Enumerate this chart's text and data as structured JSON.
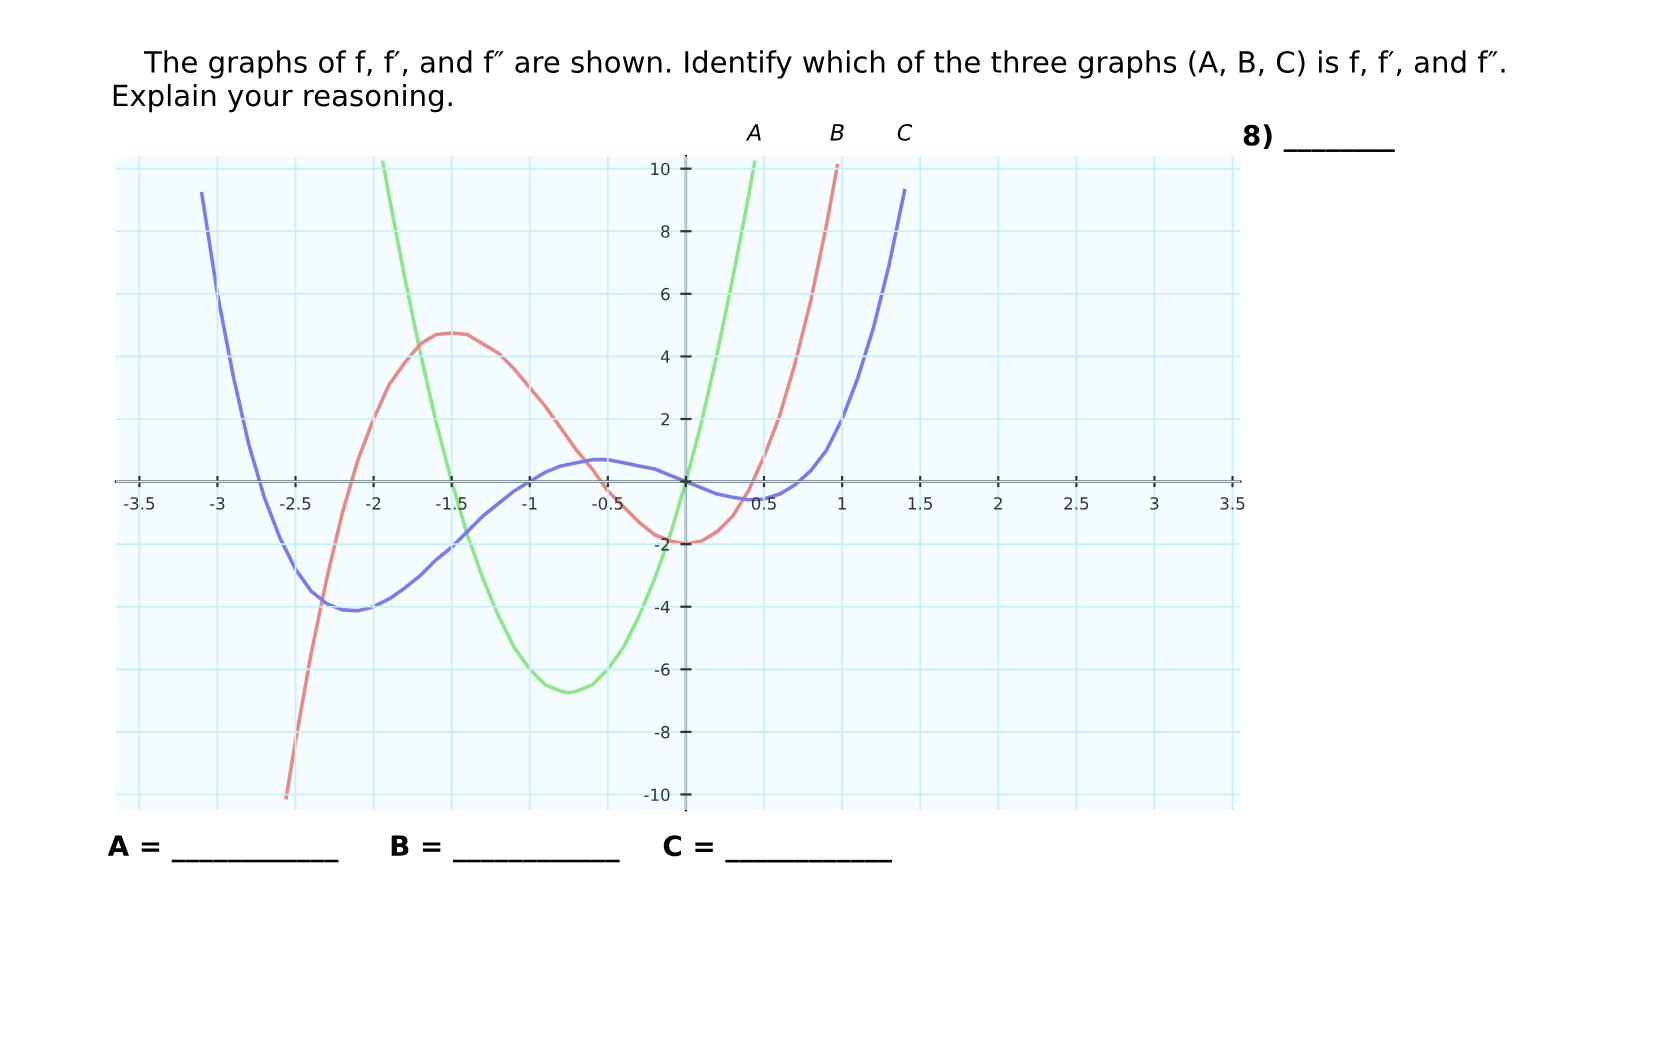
{
  "chart_data": {
    "type": "line",
    "title": "The graphs of f, f′, and f″ are shown. Identify which of the three graphs (A, B, C) is f, f′, and f″.",
    "subtitle": "Explain your reasoning.",
    "annotations": [
      "8) ________",
      "A = ____________",
      "B = ____________",
      "C = ____________"
    ],
    "xlim": [
      -3.65,
      3.55
    ],
    "ylim": [
      -10.5,
      10.4
    ],
    "xticks": [
      -3.5,
      -3,
      -2.5,
      -2,
      -1.5,
      -1,
      -0.5,
      {
        "value": 0,
        "label": null
      },
      0.5,
      1,
      1.5,
      2,
      2.5,
      3,
      3.5
    ],
    "yticks": [
      -10,
      -8,
      -6,
      -4,
      -2,
      {
        "value": 0,
        "label": null
      },
      2,
      4,
      6,
      8,
      10
    ],
    "grid": true,
    "legend": false,
    "marker": "none",
    "line_style": "solid",
    "series": [
      {
        "name": "A",
        "color": "#8ee68a",
        "x": [
          -1.94,
          -1.9,
          -1.8,
          -1.7,
          -1.6,
          -1.5,
          -1.4,
          -1.3,
          -1.2,
          -1.1,
          -1.0,
          -0.9,
          -0.8,
          -0.75,
          -0.7,
          -0.6,
          -0.5,
          -0.4,
          -0.3,
          -0.2,
          -0.1,
          0,
          0.1,
          0.2,
          0.3,
          0.4,
          0.44
        ],
        "values": [
          10.2,
          9.1,
          6.5,
          4.1,
          1.9,
          0,
          -1.7,
          -3.1,
          -4.3,
          -5.3,
          -6.0,
          -6.5,
          -6.7,
          -6.75,
          -6.7,
          -6.5,
          -6.0,
          -5.3,
          -4.3,
          -3.1,
          -1.7,
          0,
          1.9,
          4.1,
          6.5,
          9.1,
          10.2
        ]
      },
      {
        "name": "B",
        "color": "#e88a84",
        "x": [
          -2.56,
          -2.5,
          -2.4,
          -2.3,
          -2.2,
          -2.1,
          -2.0,
          -1.9,
          -1.8,
          -1.7,
          -1.6,
          -1.5,
          -1.4,
          -1.3,
          -1.2,
          -1.1,
          -1.0,
          -0.9,
          -0.8,
          -0.7,
          -0.6,
          -0.5,
          -0.4,
          -0.3,
          -0.2,
          -0.1,
          0,
          0.1,
          0.2,
          0.3,
          0.4,
          0.5,
          0.6,
          0.7,
          0.8,
          0.9,
          0.97
        ],
        "values": [
          -10.1,
          -8.3,
          -5.5,
          -3.1,
          -1.0,
          0.7,
          2.0,
          3.1,
          3.8,
          4.4,
          4.7,
          4.75,
          4.7,
          4.4,
          4.1,
          3.6,
          3.0,
          2.4,
          1.7,
          1.0,
          0.4,
          -0.3,
          -0.8,
          -1.3,
          -1.7,
          -1.9,
          -2.0,
          -1.9,
          -1.6,
          -1.1,
          -0.3,
          0.8,
          2.1,
          3.8,
          5.8,
          8.2,
          10.1
        ]
      },
      {
        "name": "C",
        "color": "#7b7bef",
        "x": [
          -3.1,
          -3.0,
          -2.9,
          -2.8,
          -2.7,
          -2.6,
          -2.5,
          -2.4,
          -2.3,
          -2.2,
          -2.1,
          -2.0,
          -1.9,
          -1.8,
          -1.7,
          -1.6,
          -1.5,
          -1.4,
          -1.3,
          -1.2,
          -1.1,
          -1.0,
          -0.9,
          -0.8,
          -0.7,
          -0.6,
          -0.5,
          -0.4,
          -0.3,
          -0.2,
          -0.1,
          0,
          0.1,
          0.2,
          0.3,
          0.4,
          0.5,
          0.6,
          0.7,
          0.8,
          0.9,
          1.0,
          1.1,
          1.2,
          1.3,
          1.4
        ],
        "values": [
          9.2,
          6.0,
          3.4,
          1.2,
          -0.5,
          -1.8,
          -2.8,
          -3.5,
          -3.9,
          -4.1,
          -4.13,
          -4.0,
          -3.75,
          -3.4,
          -3.0,
          -2.5,
          -2.1,
          -1.6,
          -1.1,
          -0.7,
          -0.3,
          0,
          0.3,
          0.5,
          0.6,
          0.7,
          0.7,
          0.6,
          0.5,
          0.4,
          0.2,
          0,
          -0.2,
          -0.4,
          -0.5,
          -0.58,
          -0.56,
          -0.4,
          -0.1,
          0.35,
          1.0,
          2.0,
          3.3,
          4.9,
          6.9,
          9.3
        ]
      }
    ]
  }
}
